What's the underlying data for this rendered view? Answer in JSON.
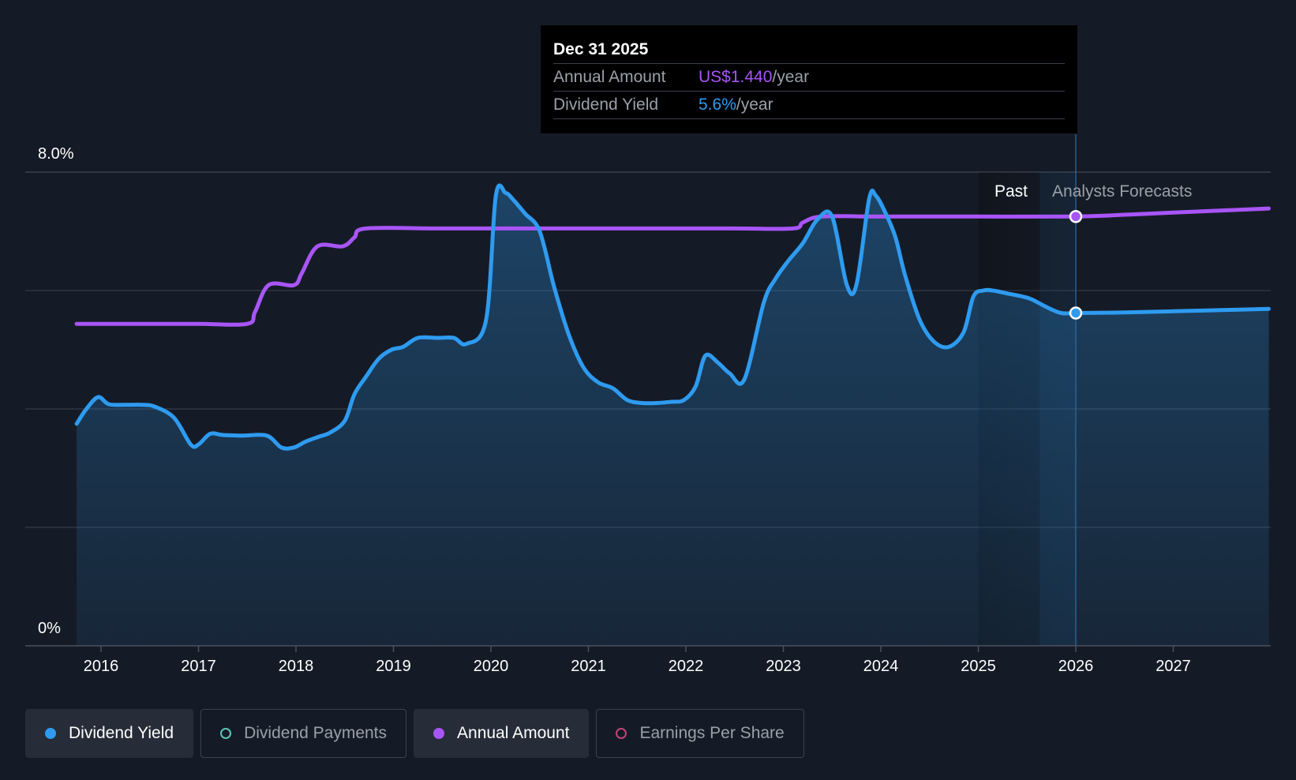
{
  "tooltip": {
    "date": "Dec 31 2025",
    "annual_amount_label": "Annual Amount",
    "annual_amount_value": "US$1.440",
    "dividend_yield_label": "Dividend Yield",
    "dividend_yield_value": "5.6%",
    "unit": "/year"
  },
  "period_labels": {
    "past": "Past",
    "forecast": "Analysts Forecasts"
  },
  "legend": [
    {
      "label": "Dividend Yield",
      "color": "#2e9bf0",
      "filled": true,
      "active": true
    },
    {
      "label": "Dividend Payments",
      "color": "#5ec4b6",
      "filled": false,
      "active": false
    },
    {
      "label": "Annual Amount",
      "color": "#a855f7",
      "filled": true,
      "active": true
    },
    {
      "label": "Earnings Per Share",
      "color": "#c0457a",
      "filled": false,
      "active": false
    }
  ],
  "colors": {
    "background": "#151b26",
    "yield_line": "#2e9bf0",
    "annual_line": "#a855f7",
    "grid": "#3a4150"
  },
  "chart_data": {
    "type": "line",
    "x_ticks": [
      "2016",
      "2017",
      "2018",
      "2019",
      "2020",
      "2021",
      "2022",
      "2023",
      "2024",
      "2025",
      "2026",
      "2027"
    ],
    "y_tick_labels": [
      "8.0%",
      "0%"
    ],
    "ylim": [
      0,
      8
    ],
    "xlim": [
      2015.75,
      2027.98
    ],
    "grid": true,
    "legend_position": "bottom-left",
    "forecast_start": 2026.0,
    "series": [
      {
        "name": "Dividend Yield",
        "unit": "%",
        "x": [
          2015.75,
          2015.85,
          2015.97,
          2016.08,
          2016.25,
          2016.42,
          2016.55,
          2016.75,
          2016.92,
          2017.0,
          2017.12,
          2017.25,
          2017.45,
          2017.7,
          2017.85,
          2017.98,
          2018.1,
          2018.25,
          2018.35,
          2018.5,
          2018.6,
          2018.72,
          2018.85,
          2018.98,
          2019.1,
          2019.25,
          2019.45,
          2019.62,
          2019.75,
          2019.95,
          2020.05,
          2020.15,
          2020.22,
          2020.35,
          2020.5,
          2020.65,
          2020.8,
          2020.95,
          2021.1,
          2021.25,
          2021.4,
          2021.55,
          2021.7,
          2021.85,
          2021.98,
          2022.1,
          2022.2,
          2022.33,
          2022.45,
          2022.6,
          2022.8,
          2022.92,
          2023.05,
          2023.2,
          2023.35,
          2023.5,
          2023.65,
          2023.75,
          2023.88,
          2023.95,
          2024.05,
          2024.15,
          2024.25,
          2024.4,
          2024.55,
          2024.7,
          2024.85,
          2024.95,
          2025.05,
          2025.15,
          2025.3,
          2025.45,
          2025.55,
          2025.7,
          2025.85,
          2026.0,
          2026.5,
          2027.0,
          2027.5,
          2027.98
        ],
        "y": [
          3.75,
          4.0,
          4.2,
          4.08,
          4.07,
          4.07,
          4.04,
          3.85,
          3.4,
          3.4,
          3.58,
          3.56,
          3.55,
          3.55,
          3.35,
          3.35,
          3.45,
          3.54,
          3.6,
          3.8,
          4.25,
          4.55,
          4.85,
          5.0,
          5.05,
          5.2,
          5.2,
          5.2,
          5.1,
          5.5,
          7.6,
          7.65,
          7.55,
          7.3,
          7.0,
          6.05,
          5.25,
          4.7,
          4.45,
          4.35,
          4.15,
          4.1,
          4.1,
          4.12,
          4.15,
          4.38,
          4.9,
          4.78,
          4.6,
          4.5,
          5.8,
          6.2,
          6.5,
          6.8,
          7.2,
          7.25,
          6.1,
          6.1,
          7.55,
          7.6,
          7.3,
          6.9,
          6.25,
          5.5,
          5.13,
          5.05,
          5.3,
          5.9,
          6.0,
          6.0,
          5.95,
          5.9,
          5.85,
          5.72,
          5.62,
          5.62,
          5.63,
          5.65,
          5.67,
          5.69
        ]
      },
      {
        "name": "Annual Amount",
        "unit": "US$/year",
        "x": [
          2015.75,
          2016.5,
          2017.0,
          2017.5,
          2017.58,
          2017.72,
          2017.98,
          2018.06,
          2018.22,
          2018.48,
          2018.6,
          2018.72,
          2019.5,
          2020.5,
          2021.5,
          2022.5,
          2023.1,
          2023.2,
          2023.4,
          2024.0,
          2025.0,
          2026.0,
          2026.5,
          2027.0,
          2027.98
        ],
        "y": [
          1.08,
          1.08,
          1.08,
          1.08,
          1.12,
          1.21,
          1.21,
          1.25,
          1.34,
          1.34,
          1.37,
          1.4,
          1.4,
          1.4,
          1.4,
          1.4,
          1.4,
          1.42,
          1.44,
          1.44,
          1.44,
          1.44,
          1.446,
          1.453,
          1.467
        ]
      }
    ]
  }
}
